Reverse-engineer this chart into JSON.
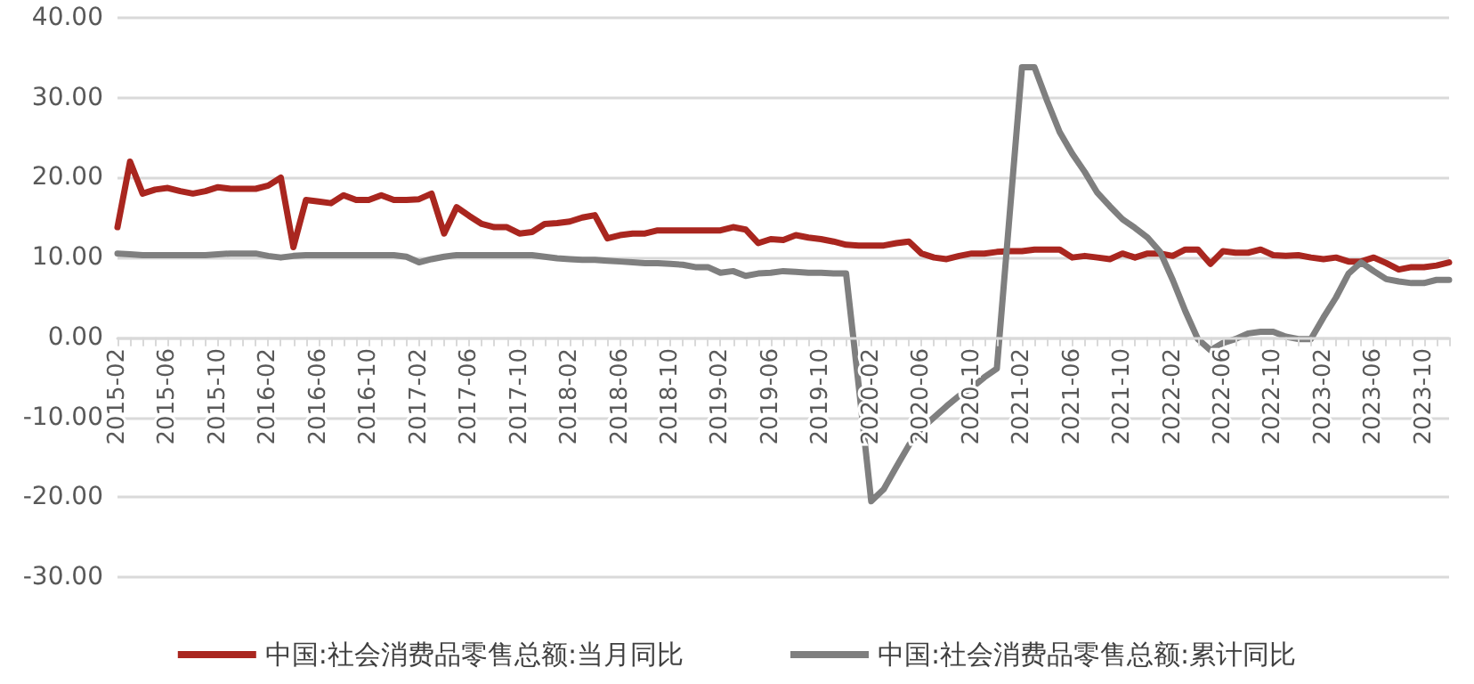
{
  "chart_data": {
    "type": "line",
    "categories": [
      "2015-02",
      null,
      null,
      null,
      "2015-06",
      null,
      null,
      null,
      "2015-10",
      null,
      null,
      null,
      "2016-02",
      null,
      null,
      null,
      "2016-06",
      null,
      null,
      null,
      "2016-10",
      null,
      null,
      null,
      "2017-02",
      null,
      null,
      null,
      "2017-06",
      null,
      null,
      null,
      "2017-10",
      null,
      null,
      null,
      "2018-02",
      null,
      null,
      null,
      "2018-06",
      null,
      null,
      null,
      "2018-10",
      null,
      null,
      null,
      "2019-02",
      null,
      null,
      null,
      "2019-06",
      null,
      null,
      null,
      "2019-10",
      null,
      null,
      null,
      "2020-02",
      null,
      null,
      null,
      "2020-06",
      null,
      null,
      null,
      "2020-10",
      null,
      null,
      null,
      "2021-02",
      null,
      null,
      null,
      "2021-06",
      null,
      null,
      null,
      "2021-10",
      null,
      null,
      null,
      "2022-02",
      null,
      null,
      null,
      "2022-06",
      null,
      null,
      null,
      "2022-10",
      null,
      null,
      null,
      "2023-02",
      null,
      null,
      null,
      "2023-06",
      null,
      null,
      null,
      "2023-10",
      null,
      null
    ],
    "series": [
      {
        "name": "中国:社会消费品零售总额:当月同比",
        "color": "#a9261f",
        "values": [
          13.8,
          22,
          18,
          18.5,
          18.7,
          18.3,
          18,
          18.3,
          18.8,
          18.6,
          18.6,
          18.6,
          19,
          20,
          11.3,
          17.2,
          17,
          16.8,
          17.8,
          17.2,
          17.2,
          17.8,
          17.2,
          17.2,
          17.3,
          18,
          13,
          16.3,
          15.2,
          14.2,
          13.8,
          13.8,
          13,
          13.2,
          14.2,
          14.3,
          14.5,
          15,
          15.3,
          12.4,
          12.8,
          13,
          13,
          13.4,
          13.4,
          13.4,
          13.4,
          13.4,
          13.4,
          13.8,
          13.5,
          11.8,
          12.3,
          12.2,
          12.8,
          12.5,
          12.3,
          12,
          11.6,
          11.5,
          11.5,
          11.5,
          11.8,
          12,
          10.5,
          10,
          9.8,
          10.2,
          10.5,
          10.5,
          10.7,
          10.8,
          10.8,
          11,
          11,
          11,
          10,
          10.2,
          10,
          9.8,
          10.5,
          10,
          10.5,
          10.5,
          10.2,
          11,
          11,
          9.2,
          10.8,
          10.6,
          10.6,
          11,
          10.3,
          10.2,
          10.3,
          10,
          9.8,
          10,
          9.5,
          9.5,
          10,
          9.3,
          8.5,
          8.8,
          8.8,
          9,
          9.4
        ]
      },
      {
        "name": "中国:社会消费品零售总额:累计同比",
        "color": "#7f7f7f",
        "values": [
          10.5,
          10.4,
          10.3,
          10.3,
          10.3,
          10.3,
          10.3,
          10.3,
          10.4,
          10.5,
          10.5,
          10.5,
          10.2,
          10,
          10.2,
          10.3,
          10.3,
          10.3,
          10.3,
          10.3,
          10.3,
          10.3,
          10.3,
          10.1,
          9.4,
          9.8,
          10.1,
          10.3,
          10.3,
          10.3,
          10.3,
          10.3,
          10.3,
          10.3,
          10.1,
          9.9,
          9.8,
          9.7,
          9.7,
          9.6,
          9.5,
          9.4,
          9.3,
          9.3,
          9.2,
          9.1,
          8.8,
          8.8,
          8.1,
          8.3,
          7.7,
          8,
          8.1,
          8.3,
          8.2,
          8.1,
          8.1,
          8,
          8,
          -6,
          -20.5,
          -19,
          -16.2,
          -13.5,
          -11.4,
          -10,
          -8.6,
          -7.3,
          -6.3,
          -5,
          -3.9,
          15,
          33.8,
          33.8,
          29.6,
          25.7,
          23,
          20.7,
          18.1,
          16.4,
          14.8,
          13.7,
          12.5,
          10.7,
          7.2,
          3.3,
          -0.2,
          -1.6,
          -0.7,
          -0.2,
          0.5,
          0.7,
          0.7,
          0.1,
          -0.2,
          -0.2,
          2.5,
          5,
          8,
          9.4,
          8.3,
          7.3,
          7,
          6.8,
          6.8,
          7.2,
          7.2
        ]
      }
    ],
    "ylim": [
      -30,
      40
    ],
    "yticks": [
      {
        "value": -30,
        "label": "-30.00"
      },
      {
        "value": -20,
        "label": "-20.00"
      },
      {
        "value": -10,
        "label": "-10.00"
      },
      {
        "value": 0,
        "label": "0.00"
      },
      {
        "value": 10,
        "label": "10.00"
      },
      {
        "value": 20,
        "label": "20.00"
      },
      {
        "value": 30,
        "label": "30.00"
      },
      {
        "value": 40,
        "label": "40.00"
      }
    ],
    "grid": "y",
    "legend": "bottom",
    "marker": "none",
    "line_style": "solid"
  }
}
